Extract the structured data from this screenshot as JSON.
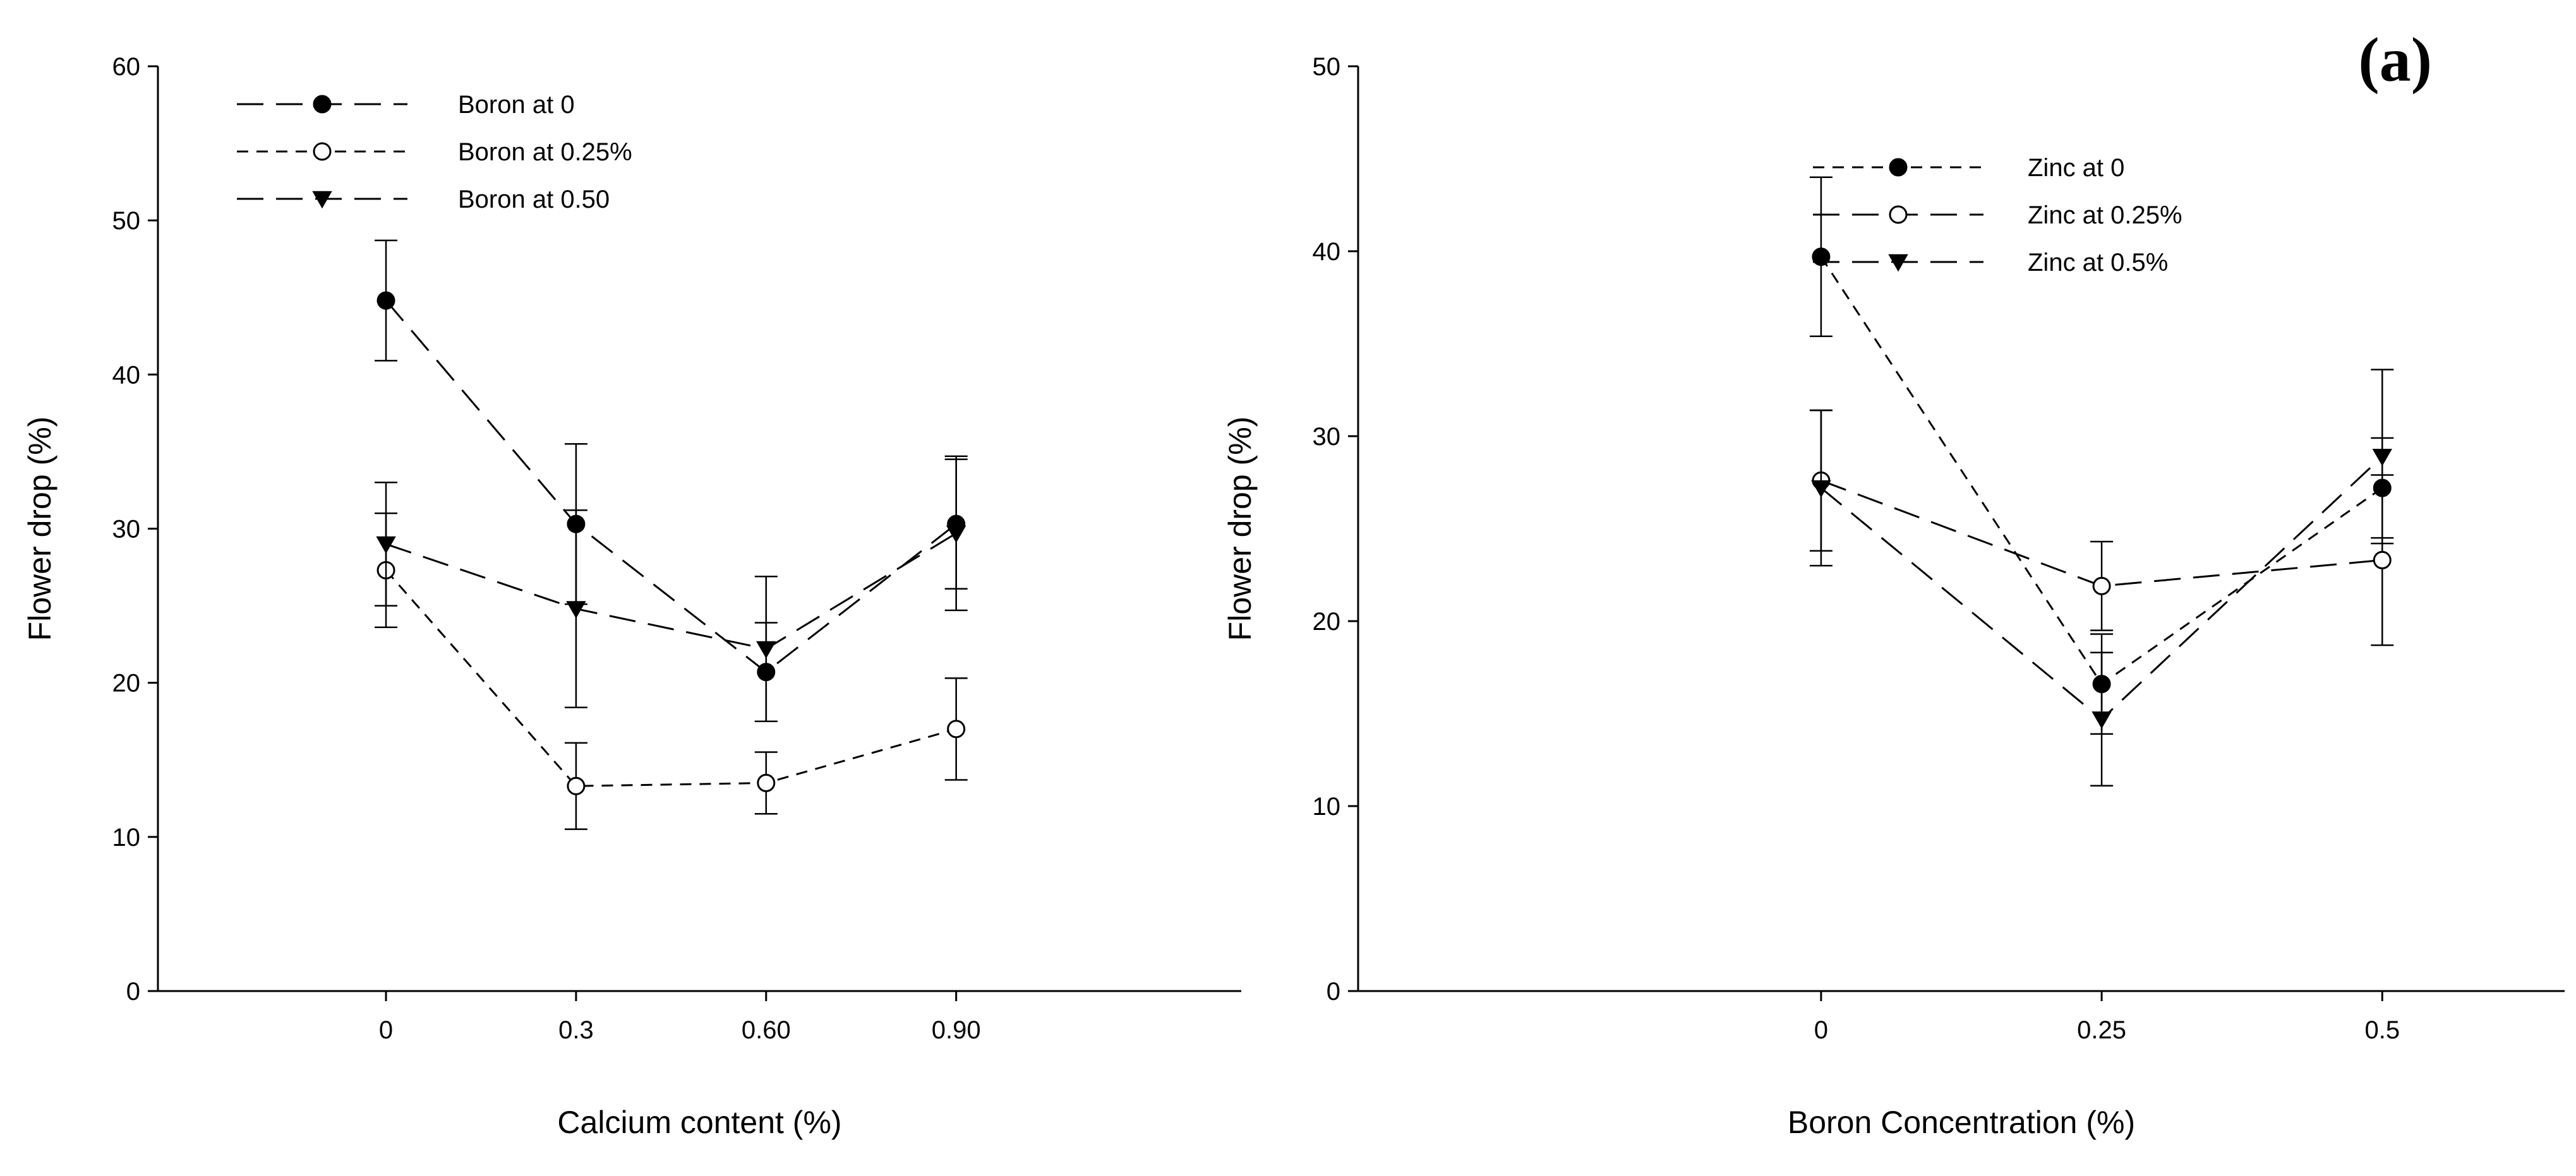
{
  "panel_label": "(a)",
  "colors": {
    "ink": "#000000",
    "open_fill": "#ffffff"
  },
  "chart_data": [
    {
      "type": "line",
      "xlabel": "Calcium content (%)",
      "ylabel": "Flower drop (%)",
      "categories": [
        "0",
        "0.3",
        "0.60",
        "0.90"
      ],
      "x_positions": [
        0,
        1,
        2,
        3
      ],
      "xlim": [
        -1.2,
        4.5
      ],
      "ylim": [
        0,
        60
      ],
      "yticks": [
        0,
        10,
        20,
        30,
        40,
        50,
        60
      ],
      "grid": false,
      "legend_position": "top-left",
      "series": [
        {
          "name": "Boron at 0",
          "marker": "filled-circle",
          "dash": "long",
          "values": [
            44.8,
            30.3,
            20.7,
            30.3
          ],
          "errors": [
            3.9,
            5.2,
            3.2,
            4.2
          ]
        },
        {
          "name": "Boron at 0.25%",
          "marker": "open-circle",
          "dash": "short",
          "values": [
            27.3,
            13.3,
            13.5,
            17.0
          ],
          "errors": [
            3.7,
            2.8,
            2.0,
            3.3
          ]
        },
        {
          "name": "Boron at 0.50",
          "marker": "filled-triangle-down",
          "dash": "long",
          "values": [
            29.0,
            24.8,
            22.2,
            29.7
          ],
          "errors": [
            4.0,
            6.4,
            4.7,
            5.0
          ]
        }
      ]
    },
    {
      "type": "line",
      "xlabel": "Boron Concentration (%)",
      "ylabel": "Flower drop (%)",
      "categories": [
        "0",
        "0.25",
        "0.5"
      ],
      "x_positions": [
        0,
        1,
        2
      ],
      "xlim": [
        -1.65,
        2.65
      ],
      "ylim": [
        0,
        50
      ],
      "yticks": [
        0,
        10,
        20,
        30,
        40,
        50
      ],
      "grid": false,
      "legend_position": "top-center",
      "series": [
        {
          "name": "Zinc at 0",
          "marker": "filled-circle",
          "dash": "short",
          "values": [
            39.7,
            16.6,
            27.2
          ],
          "errors": [
            4.3,
            2.7,
            2.7
          ]
        },
        {
          "name": "Zinc at 0.25%",
          "marker": "open-circle",
          "dash": "long",
          "values": [
            27.6,
            21.9,
            23.3
          ],
          "errors": [
            3.8,
            2.4,
            4.6
          ]
        },
        {
          "name": "Zinc at 0.5%",
          "marker": "filled-triangle-down",
          "dash": "long",
          "values": [
            27.2,
            14.7,
            28.9
          ],
          "errors": [
            4.2,
            3.6,
            4.7
          ]
        }
      ]
    }
  ]
}
